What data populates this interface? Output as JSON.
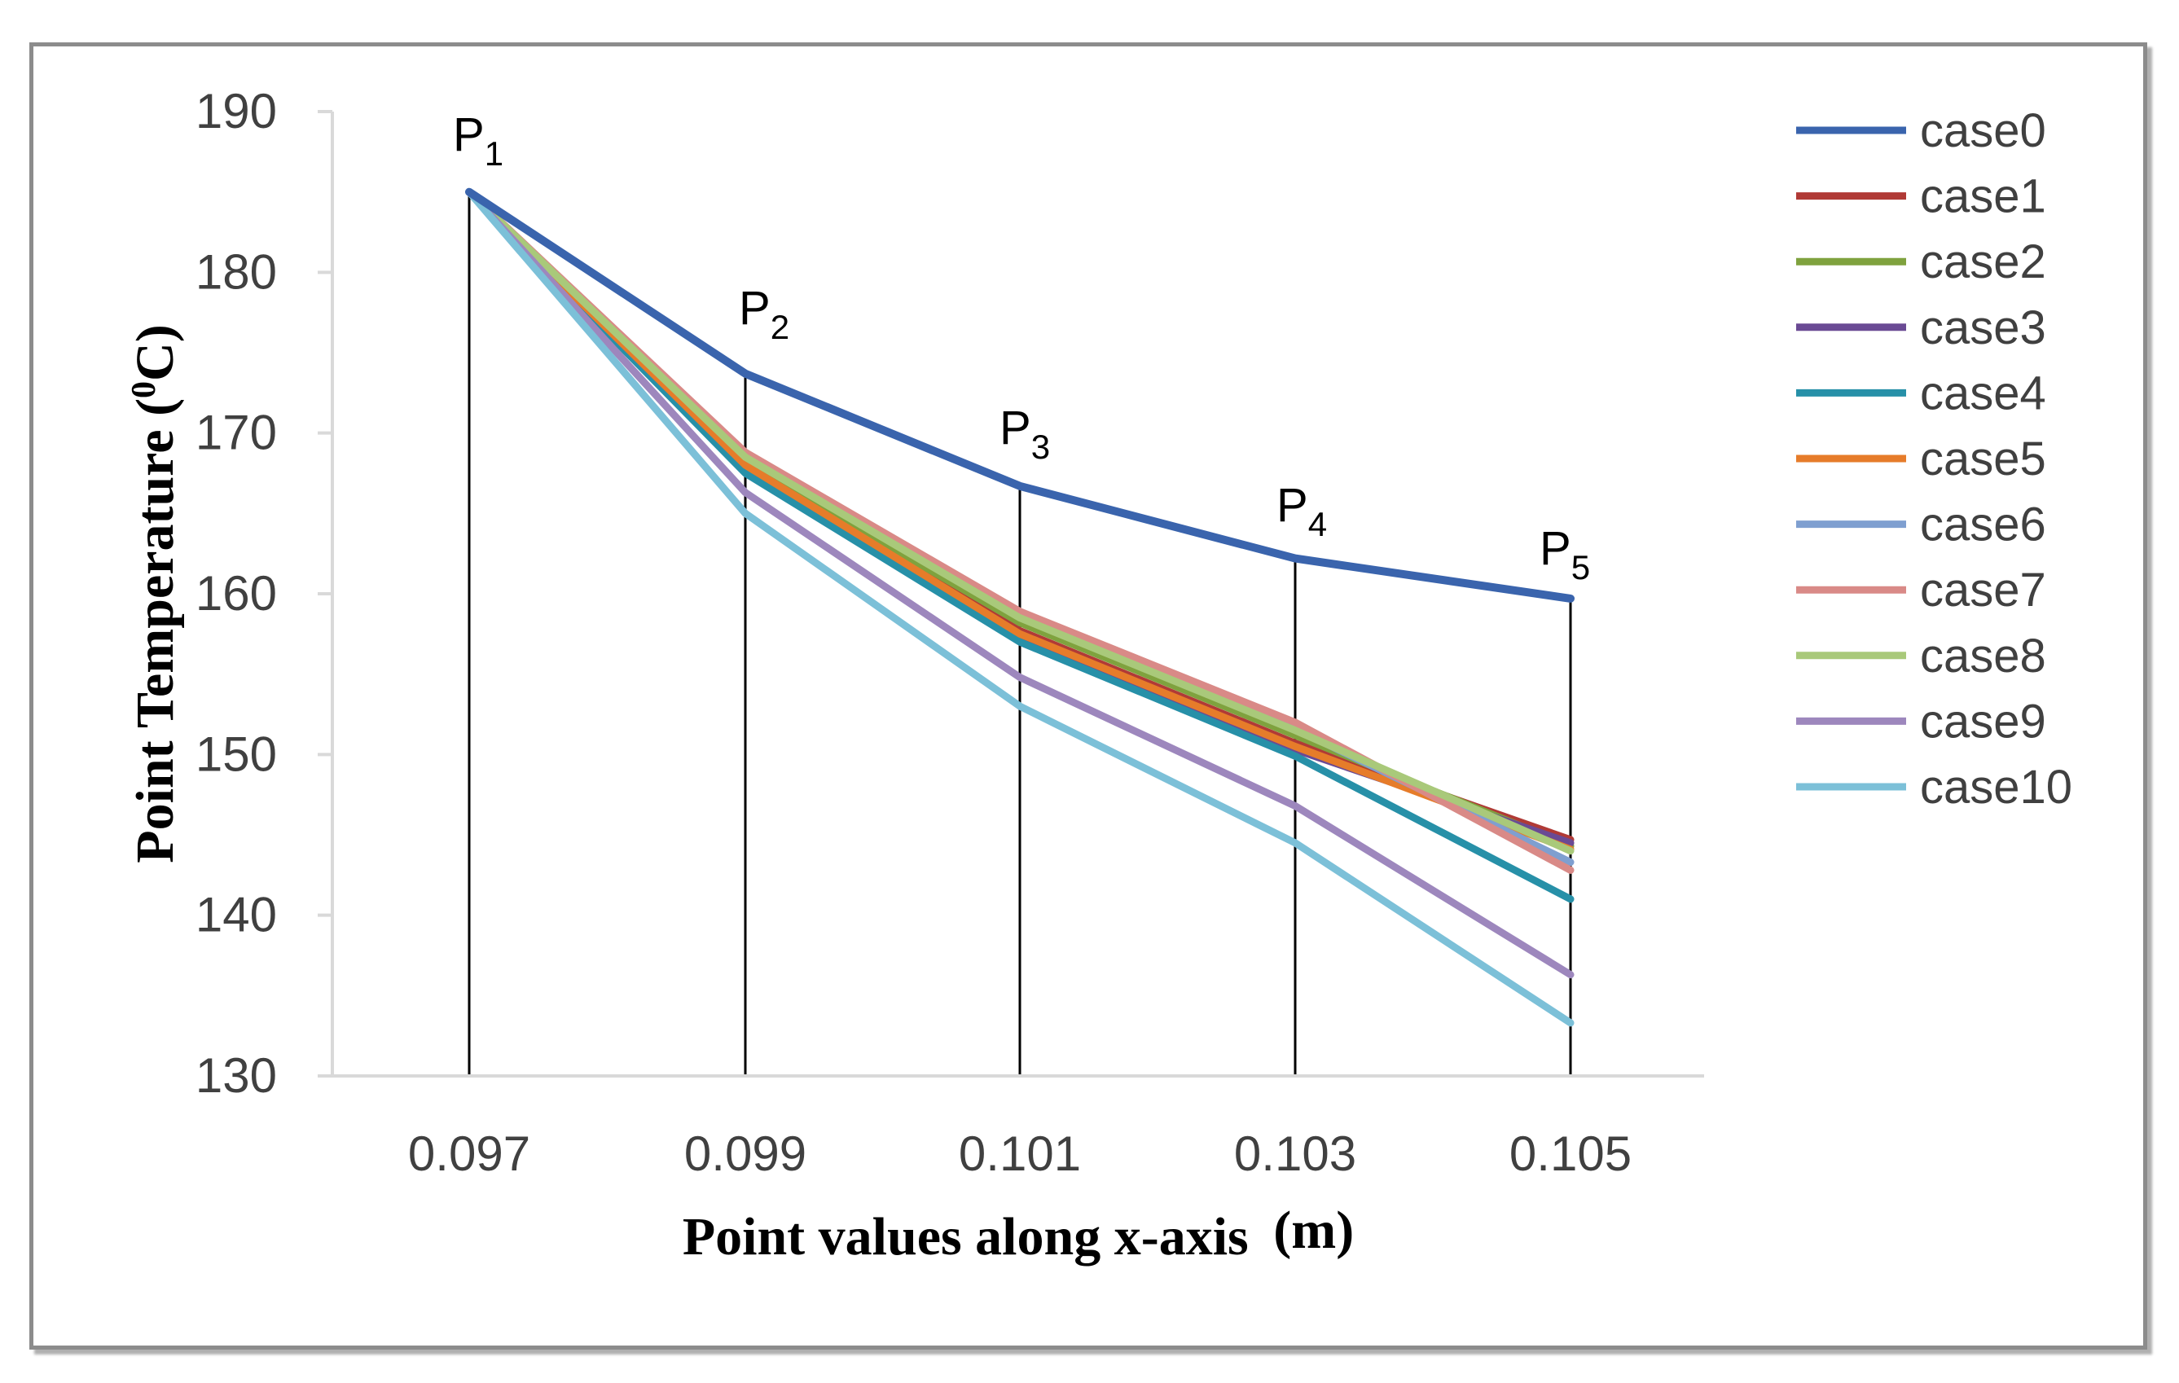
{
  "chart_data": {
    "type": "line",
    "xlabel": "Point values along x-axis",
    "xlabel_unit": "(m)",
    "ylabel": "Point Temperature  (",
    "ylabel_sup": "0",
    "ylabel_end": "C)",
    "x": [
      0.097,
      0.099,
      0.101,
      0.103,
      0.105
    ],
    "x_tick_labels": [
      "0.097",
      "0.099",
      "0.101",
      "0.103",
      "0.105"
    ],
    "y_ticks": [
      130,
      140,
      150,
      160,
      170,
      180,
      190
    ],
    "ylim": [
      130,
      190
    ],
    "point_labels": [
      {
        "main": "P",
        "sub": "1"
      },
      {
        "main": "P",
        "sub": "2"
      },
      {
        "main": "P",
        "sub": "3"
      },
      {
        "main": "P",
        "sub": "4"
      },
      {
        "main": "P",
        "sub": "5"
      }
    ],
    "legend_position": "right",
    "series": [
      {
        "name": "case0",
        "color": "#3a64ad",
        "values": [
          185.0,
          173.7,
          166.7,
          162.2,
          159.7
        ]
      },
      {
        "name": "case1",
        "color": "#b03a36",
        "values": [
          185.0,
          168.0,
          157.7,
          150.7,
          144.7
        ]
      },
      {
        "name": "case2",
        "color": "#7fa23e",
        "values": [
          185.0,
          168.2,
          158.2,
          151.2,
          144.3
        ]
      },
      {
        "name": "case3",
        "color": "#6a4a94",
        "values": [
          185.0,
          167.8,
          157.3,
          150.3,
          144.5
        ]
      },
      {
        "name": "case4",
        "color": "#2790a8",
        "values": [
          185.0,
          167.5,
          157.0,
          149.9,
          141.0
        ]
      },
      {
        "name": "case5",
        "color": "#e67c2a",
        "values": [
          185.0,
          168.0,
          157.5,
          150.5,
          144.1
        ]
      },
      {
        "name": "case6",
        "color": "#7f9fd0",
        "values": [
          185.0,
          168.6,
          158.6,
          151.6,
          143.3
        ]
      },
      {
        "name": "case7",
        "color": "#d98a87",
        "values": [
          185.0,
          168.8,
          158.9,
          152.0,
          142.8
        ]
      },
      {
        "name": "case8",
        "color": "#a9c97a",
        "values": [
          185.0,
          168.5,
          158.5,
          151.5,
          144.0
        ]
      },
      {
        "name": "case9",
        "color": "#9d87bd",
        "values": [
          185.0,
          166.3,
          154.8,
          146.8,
          136.3
        ]
      },
      {
        "name": "case10",
        "color": "#7cc0d8",
        "values": [
          185.0,
          165.0,
          153.0,
          144.5,
          133.3
        ]
      }
    ]
  }
}
